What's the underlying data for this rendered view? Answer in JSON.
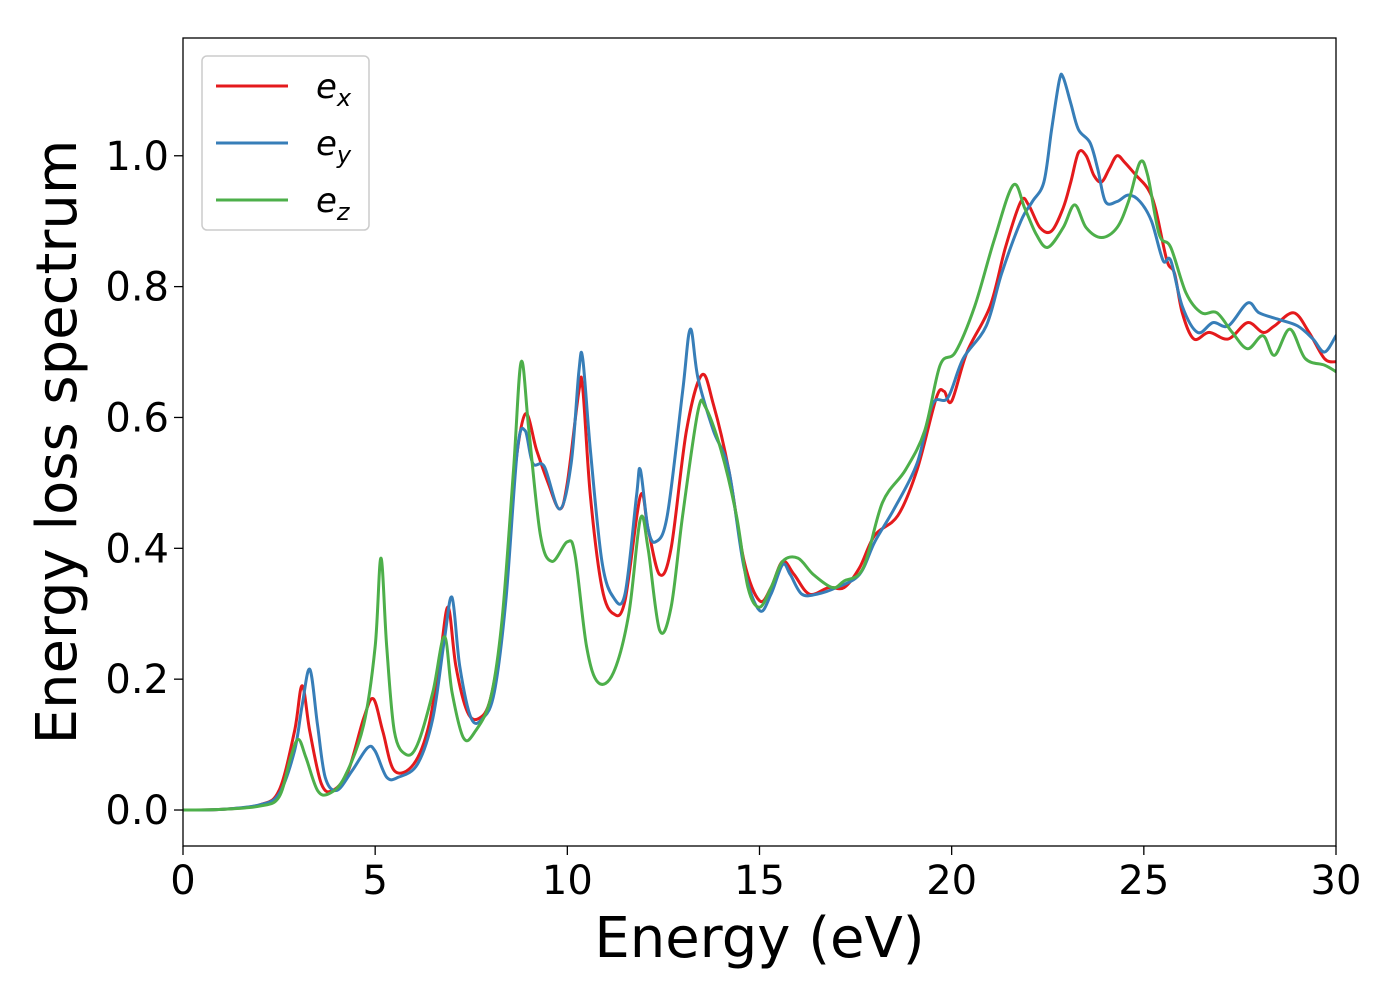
{
  "chart_data": {
    "type": "line",
    "title": "",
    "xlabel": "Energy (eV)",
    "ylabel": "Energy loss spectrum",
    "xlim": [
      0,
      30
    ],
    "ylim": [
      -0.055,
      1.18
    ],
    "xticks": [
      "0",
      "5",
      "10",
      "15",
      "20",
      "25",
      "30"
    ],
    "xtick_values": [
      0,
      5,
      10,
      15,
      20,
      25,
      30
    ],
    "yticks": [
      "0.0",
      "0.2",
      "0.4",
      "0.6",
      "0.8",
      "1.0"
    ],
    "ytick_values": [
      0.0,
      0.2,
      0.4,
      0.6,
      0.8,
      1.0
    ],
    "grid": false,
    "legend_position": "top-left",
    "series": [
      {
        "name": "e_x",
        "label_base": "e",
        "label_sub": "x",
        "color": "#e41a1c",
        "points": [
          [
            0,
            0
          ],
          [
            1,
            0.001
          ],
          [
            2,
            0.008
          ],
          [
            2.5,
            0.03
          ],
          [
            2.9,
            0.12
          ],
          [
            3.1,
            0.19
          ],
          [
            3.3,
            0.12
          ],
          [
            3.6,
            0.04
          ],
          [
            3.9,
            0.03
          ],
          [
            4.3,
            0.06
          ],
          [
            4.7,
            0.14
          ],
          [
            4.95,
            0.17
          ],
          [
            5.2,
            0.12
          ],
          [
            5.5,
            0.06
          ],
          [
            6.0,
            0.07
          ],
          [
            6.4,
            0.13
          ],
          [
            6.7,
            0.24
          ],
          [
            6.9,
            0.31
          ],
          [
            7.1,
            0.22
          ],
          [
            7.4,
            0.15
          ],
          [
            7.7,
            0.14
          ],
          [
            8.0,
            0.17
          ],
          [
            8.3,
            0.28
          ],
          [
            8.6,
            0.5
          ],
          [
            8.9,
            0.605
          ],
          [
            9.2,
            0.55
          ],
          [
            9.5,
            0.5
          ],
          [
            9.8,
            0.46
          ],
          [
            10.0,
            0.5
          ],
          [
            10.3,
            0.64
          ],
          [
            10.4,
            0.645
          ],
          [
            10.6,
            0.48
          ],
          [
            10.9,
            0.34
          ],
          [
            11.2,
            0.3
          ],
          [
            11.5,
            0.32
          ],
          [
            11.9,
            0.48
          ],
          [
            12.1,
            0.43
          ],
          [
            12.4,
            0.36
          ],
          [
            12.7,
            0.4
          ],
          [
            13.1,
            0.58
          ],
          [
            13.5,
            0.665
          ],
          [
            13.8,
            0.62
          ],
          [
            14.2,
            0.52
          ],
          [
            14.6,
            0.38
          ],
          [
            15.0,
            0.32
          ],
          [
            15.3,
            0.34
          ],
          [
            15.6,
            0.38
          ],
          [
            15.9,
            0.36
          ],
          [
            16.3,
            0.33
          ],
          [
            16.8,
            0.34
          ],
          [
            17.2,
            0.34
          ],
          [
            17.6,
            0.37
          ],
          [
            18.0,
            0.42
          ],
          [
            18.6,
            0.45
          ],
          [
            19.1,
            0.52
          ],
          [
            19.6,
            0.63
          ],
          [
            19.8,
            0.64
          ],
          [
            20.0,
            0.625
          ],
          [
            20.4,
            0.7
          ],
          [
            21.0,
            0.77
          ],
          [
            21.4,
            0.86
          ],
          [
            21.8,
            0.93
          ],
          [
            22.0,
            0.925
          ],
          [
            22.3,
            0.89
          ],
          [
            22.6,
            0.885
          ],
          [
            22.9,
            0.92
          ],
          [
            23.1,
            0.96
          ],
          [
            23.3,
            1.005
          ],
          [
            23.5,
            1.0
          ],
          [
            23.7,
            0.97
          ],
          [
            23.9,
            0.96
          ],
          [
            24.1,
            0.98
          ],
          [
            24.3,
            1.0
          ],
          [
            24.5,
            0.99
          ],
          [
            24.8,
            0.97
          ],
          [
            25.1,
            0.95
          ],
          [
            25.3,
            0.92
          ],
          [
            25.6,
            0.84
          ],
          [
            25.8,
            0.82
          ],
          [
            26.0,
            0.76
          ],
          [
            26.3,
            0.72
          ],
          [
            26.7,
            0.73
          ],
          [
            27.2,
            0.72
          ],
          [
            27.7,
            0.745
          ],
          [
            28.1,
            0.73
          ],
          [
            28.4,
            0.74
          ],
          [
            28.9,
            0.76
          ],
          [
            29.3,
            0.73
          ],
          [
            29.7,
            0.69
          ],
          [
            30,
            0.685
          ]
        ]
      },
      {
        "name": "e_y",
        "label_base": "e",
        "label_sub": "y",
        "color": "#377eb8",
        "points": [
          [
            0,
            0
          ],
          [
            1,
            0.001
          ],
          [
            2,
            0.008
          ],
          [
            2.5,
            0.025
          ],
          [
            2.9,
            0.09
          ],
          [
            3.1,
            0.16
          ],
          [
            3.3,
            0.215
          ],
          [
            3.5,
            0.13
          ],
          [
            3.7,
            0.05
          ],
          [
            4.0,
            0.03
          ],
          [
            4.4,
            0.06
          ],
          [
            4.8,
            0.095
          ],
          [
            5.0,
            0.09
          ],
          [
            5.3,
            0.05
          ],
          [
            5.6,
            0.05
          ],
          [
            6.1,
            0.07
          ],
          [
            6.5,
            0.14
          ],
          [
            6.8,
            0.26
          ],
          [
            7.0,
            0.325
          ],
          [
            7.2,
            0.22
          ],
          [
            7.5,
            0.14
          ],
          [
            7.8,
            0.14
          ],
          [
            8.1,
            0.18
          ],
          [
            8.4,
            0.32
          ],
          [
            8.7,
            0.55
          ],
          [
            8.9,
            0.58
          ],
          [
            9.1,
            0.53
          ],
          [
            9.4,
            0.525
          ],
          [
            9.8,
            0.46
          ],
          [
            10.1,
            0.53
          ],
          [
            10.3,
            0.67
          ],
          [
            10.4,
            0.69
          ],
          [
            10.6,
            0.55
          ],
          [
            10.9,
            0.38
          ],
          [
            11.2,
            0.325
          ],
          [
            11.5,
            0.33
          ],
          [
            11.8,
            0.48
          ],
          [
            11.9,
            0.52
          ],
          [
            12.1,
            0.43
          ],
          [
            12.3,
            0.41
          ],
          [
            12.6,
            0.45
          ],
          [
            13.0,
            0.64
          ],
          [
            13.2,
            0.735
          ],
          [
            13.4,
            0.66
          ],
          [
            13.8,
            0.58
          ],
          [
            14.2,
            0.52
          ],
          [
            14.6,
            0.37
          ],
          [
            15.0,
            0.305
          ],
          [
            15.3,
            0.33
          ],
          [
            15.6,
            0.375
          ],
          [
            15.8,
            0.36
          ],
          [
            16.1,
            0.33
          ],
          [
            16.5,
            0.33
          ],
          [
            17.0,
            0.34
          ],
          [
            17.6,
            0.36
          ],
          [
            18.0,
            0.41
          ],
          [
            18.5,
            0.46
          ],
          [
            19.1,
            0.53
          ],
          [
            19.5,
            0.62
          ],
          [
            19.9,
            0.63
          ],
          [
            20.3,
            0.69
          ],
          [
            20.9,
            0.74
          ],
          [
            21.3,
            0.82
          ],
          [
            21.8,
            0.9
          ],
          [
            22.1,
            0.93
          ],
          [
            22.4,
            0.96
          ],
          [
            22.6,
            1.04
          ],
          [
            22.8,
            1.115
          ],
          [
            22.9,
            1.12
          ],
          [
            23.1,
            1.08
          ],
          [
            23.3,
            1.04
          ],
          [
            23.6,
            1.02
          ],
          [
            23.8,
            0.98
          ],
          [
            24.0,
            0.93
          ],
          [
            24.3,
            0.93
          ],
          [
            24.6,
            0.94
          ],
          [
            24.9,
            0.93
          ],
          [
            25.2,
            0.9
          ],
          [
            25.5,
            0.84
          ],
          [
            25.7,
            0.84
          ],
          [
            26.0,
            0.77
          ],
          [
            26.4,
            0.73
          ],
          [
            26.8,
            0.745
          ],
          [
            27.2,
            0.74
          ],
          [
            27.7,
            0.775
          ],
          [
            28.0,
            0.76
          ],
          [
            28.5,
            0.75
          ],
          [
            29.0,
            0.74
          ],
          [
            29.4,
            0.72
          ],
          [
            29.7,
            0.7
          ],
          [
            30,
            0.725
          ]
        ]
      },
      {
        "name": "e_z",
        "label_base": "e",
        "label_sub": "z",
        "color": "#4daf4a",
        "points": [
          [
            0,
            0
          ],
          [
            1,
            0.001
          ],
          [
            2,
            0.006
          ],
          [
            2.5,
            0.02
          ],
          [
            2.8,
            0.08
          ],
          [
            3.0,
            0.108
          ],
          [
            3.2,
            0.08
          ],
          [
            3.5,
            0.03
          ],
          [
            3.8,
            0.025
          ],
          [
            4.2,
            0.05
          ],
          [
            4.7,
            0.13
          ],
          [
            5.0,
            0.25
          ],
          [
            5.15,
            0.385
          ],
          [
            5.3,
            0.25
          ],
          [
            5.5,
            0.12
          ],
          [
            5.8,
            0.085
          ],
          [
            6.1,
            0.1
          ],
          [
            6.5,
            0.18
          ],
          [
            6.8,
            0.265
          ],
          [
            7.0,
            0.18
          ],
          [
            7.3,
            0.11
          ],
          [
            7.6,
            0.12
          ],
          [
            8.0,
            0.17
          ],
          [
            8.3,
            0.29
          ],
          [
            8.6,
            0.52
          ],
          [
            8.8,
            0.685
          ],
          [
            9.0,
            0.58
          ],
          [
            9.3,
            0.42
          ],
          [
            9.6,
            0.38
          ],
          [
            10.0,
            0.41
          ],
          [
            10.2,
            0.39
          ],
          [
            10.5,
            0.25
          ],
          [
            10.8,
            0.195
          ],
          [
            11.2,
            0.21
          ],
          [
            11.6,
            0.3
          ],
          [
            11.9,
            0.445
          ],
          [
            12.1,
            0.4
          ],
          [
            12.4,
            0.275
          ],
          [
            12.7,
            0.31
          ],
          [
            13.0,
            0.45
          ],
          [
            13.4,
            0.61
          ],
          [
            13.6,
            0.615
          ],
          [
            14.0,
            0.55
          ],
          [
            14.4,
            0.45
          ],
          [
            14.7,
            0.34
          ],
          [
            15.0,
            0.31
          ],
          [
            15.3,
            0.34
          ],
          [
            15.6,
            0.38
          ],
          [
            16.0,
            0.385
          ],
          [
            16.4,
            0.36
          ],
          [
            16.9,
            0.34
          ],
          [
            17.2,
            0.35
          ],
          [
            17.7,
            0.37
          ],
          [
            18.2,
            0.47
          ],
          [
            18.8,
            0.52
          ],
          [
            19.3,
            0.58
          ],
          [
            19.7,
            0.68
          ],
          [
            20.1,
            0.7
          ],
          [
            20.6,
            0.77
          ],
          [
            21.1,
            0.87
          ],
          [
            21.6,
            0.955
          ],
          [
            21.9,
            0.92
          ],
          [
            22.2,
            0.88
          ],
          [
            22.5,
            0.86
          ],
          [
            22.9,
            0.89
          ],
          [
            23.2,
            0.925
          ],
          [
            23.5,
            0.89
          ],
          [
            23.9,
            0.875
          ],
          [
            24.3,
            0.89
          ],
          [
            24.6,
            0.93
          ],
          [
            24.9,
            0.99
          ],
          [
            25.1,
            0.97
          ],
          [
            25.4,
            0.88
          ],
          [
            25.7,
            0.86
          ],
          [
            26.1,
            0.79
          ],
          [
            26.5,
            0.76
          ],
          [
            26.9,
            0.76
          ],
          [
            27.3,
            0.73
          ],
          [
            27.7,
            0.705
          ],
          [
            28.1,
            0.725
          ],
          [
            28.4,
            0.695
          ],
          [
            28.8,
            0.735
          ],
          [
            29.2,
            0.69
          ],
          [
            29.7,
            0.68
          ],
          [
            30,
            0.67
          ]
        ]
      }
    ]
  }
}
